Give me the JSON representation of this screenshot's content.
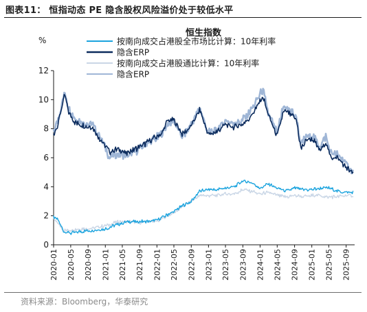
{
  "figure_title": "图表11：  恒指动态 PE 隐含股权风险溢价处于较低水平",
  "source_note": "资料来源：Bloomberg，华泰研究",
  "colors": {
    "series1": "#1aa3de",
    "series2": "#0a2a5c",
    "series3": "#c9d6e6",
    "series4": "#9fb6d6"
  },
  "chart_data": {
    "type": "line",
    "title": "恒生指数",
    "ylabel": "%",
    "xlabel": "",
    "ylim": [
      0,
      12
    ],
    "yticks": [
      "0",
      "2",
      "4",
      "6",
      "8",
      "10",
      "12"
    ],
    "grid": false,
    "legend_position": "top-center",
    "x_ticks": [
      "2020-01",
      "2020-05",
      "2020-09",
      "2021-01",
      "2021-05",
      "2021-09",
      "2022-01",
      "2022-05",
      "2022-09",
      "2023-01",
      "2023-05",
      "2023-09",
      "2024-01",
      "2024-05",
      "2024-09",
      "2025-01",
      "2025-05",
      "2025-09"
    ],
    "x_range": [
      "2020-01-01",
      "2025-10-31"
    ],
    "series": [
      {
        "name": "按南向成交占港股全市场比计算：10年利率",
        "color": "#1aa3de",
        "points": [
          [
            "2020-01-01",
            1.9
          ],
          [
            "2020-02-01",
            1.7
          ],
          [
            "2020-03-15",
            0.9
          ],
          [
            "2020-05-01",
            0.8
          ],
          [
            "2020-07-01",
            0.9
          ],
          [
            "2020-09-01",
            1.0
          ],
          [
            "2020-11-01",
            1.0
          ],
          [
            "2021-01-01",
            1.1
          ],
          [
            "2021-03-01",
            1.3
          ],
          [
            "2021-05-01",
            1.5
          ],
          [
            "2021-07-01",
            1.6
          ],
          [
            "2021-09-01",
            1.6
          ],
          [
            "2021-11-01",
            1.6
          ],
          [
            "2022-01-01",
            1.7
          ],
          [
            "2022-03-01",
            2.0
          ],
          [
            "2022-05-01",
            2.3
          ],
          [
            "2022-07-01",
            2.7
          ],
          [
            "2022-09-01",
            3.0
          ],
          [
            "2022-11-01",
            3.7
          ],
          [
            "2023-01-01",
            3.8
          ],
          [
            "2023-03-01",
            3.8
          ],
          [
            "2023-05-01",
            3.9
          ],
          [
            "2023-07-01",
            4.0
          ],
          [
            "2023-09-01",
            4.4
          ],
          [
            "2023-11-01",
            4.3
          ],
          [
            "2024-01-01",
            3.9
          ],
          [
            "2024-03-01",
            4.2
          ],
          [
            "2024-05-01",
            3.9
          ],
          [
            "2024-07-01",
            3.7
          ],
          [
            "2024-09-01",
            3.9
          ],
          [
            "2024-11-01",
            3.8
          ],
          [
            "2025-01-01",
            3.8
          ],
          [
            "2025-03-01",
            3.9
          ],
          [
            "2025-05-01",
            3.9
          ],
          [
            "2025-07-01",
            3.7
          ],
          [
            "2025-09-01",
            3.6
          ],
          [
            "2025-10-20",
            3.6
          ]
        ]
      },
      {
        "name": "隐含ERP",
        "color": "#0a2a5c",
        "points": [
          [
            "2020-01-01",
            7.6
          ],
          [
            "2020-02-01",
            8.3
          ],
          [
            "2020-03-20",
            10.4
          ],
          [
            "2020-04-15",
            9.2
          ],
          [
            "2020-06-01",
            8.4
          ],
          [
            "2020-08-01",
            8.2
          ],
          [
            "2020-10-01",
            8.1
          ],
          [
            "2020-12-01",
            7.2
          ],
          [
            "2021-02-01",
            6.4
          ],
          [
            "2021-04-01",
            6.6
          ],
          [
            "2021-06-01",
            6.3
          ],
          [
            "2021-08-01",
            6.6
          ],
          [
            "2021-10-01",
            6.9
          ],
          [
            "2021-12-01",
            7.3
          ],
          [
            "2022-02-01",
            7.6
          ],
          [
            "2022-03-15",
            8.5
          ],
          [
            "2022-05-01",
            8.6
          ],
          [
            "2022-07-01",
            7.6
          ],
          [
            "2022-09-01",
            8.2
          ],
          [
            "2022-10-31",
            9.3
          ],
          [
            "2023-01-01",
            7.6
          ],
          [
            "2023-03-01",
            7.8
          ],
          [
            "2023-05-01",
            8.3
          ],
          [
            "2023-07-01",
            8.1
          ],
          [
            "2023-09-01",
            8.3
          ],
          [
            "2023-11-01",
            8.9
          ],
          [
            "2024-01-22",
            10.2
          ],
          [
            "2024-03-01",
            8.9
          ],
          [
            "2024-05-01",
            7.5
          ],
          [
            "2024-06-15",
            9.2
          ],
          [
            "2024-08-01",
            9.0
          ],
          [
            "2024-09-15",
            8.6
          ],
          [
            "2024-10-15",
            6.6
          ],
          [
            "2024-12-01",
            7.3
          ],
          [
            "2025-01-15",
            7.2
          ],
          [
            "2025-03-01",
            6.4
          ],
          [
            "2025-04-10",
            7.1
          ],
          [
            "2025-05-15",
            6.0
          ],
          [
            "2025-07-01",
            6.0
          ],
          [
            "2025-08-15",
            5.5
          ],
          [
            "2025-10-20",
            4.9
          ]
        ]
      },
      {
        "name": "按南向成交占港股通比计算：10年利率",
        "color": "#c9d6e6",
        "points": [
          [
            "2020-01-01",
            1.8
          ],
          [
            "2020-02-01",
            1.5
          ],
          [
            "2020-03-15",
            1.0
          ],
          [
            "2020-05-01",
            1.0
          ],
          [
            "2020-07-01",
            1.1
          ],
          [
            "2020-09-01",
            1.1
          ],
          [
            "2020-11-01",
            1.2
          ],
          [
            "2021-01-01",
            1.3
          ],
          [
            "2021-03-01",
            1.5
          ],
          [
            "2021-05-01",
            1.6
          ],
          [
            "2021-07-01",
            1.6
          ],
          [
            "2021-09-01",
            1.5
          ],
          [
            "2021-11-01",
            1.6
          ],
          [
            "2022-01-01",
            1.6
          ],
          [
            "2022-03-01",
            1.9
          ],
          [
            "2022-05-01",
            2.2
          ],
          [
            "2022-07-01",
            2.6
          ],
          [
            "2022-09-01",
            3.0
          ],
          [
            "2022-11-01",
            3.4
          ],
          [
            "2023-01-01",
            3.4
          ],
          [
            "2023-03-01",
            3.4
          ],
          [
            "2023-05-01",
            3.5
          ],
          [
            "2023-07-01",
            3.5
          ],
          [
            "2023-09-01",
            3.8
          ],
          [
            "2023-11-01",
            3.7
          ],
          [
            "2024-01-01",
            3.5
          ],
          [
            "2024-03-01",
            3.6
          ],
          [
            "2024-05-01",
            3.4
          ],
          [
            "2024-07-01",
            3.3
          ],
          [
            "2024-09-01",
            3.4
          ],
          [
            "2024-11-01",
            3.3
          ],
          [
            "2025-01-01",
            3.4
          ],
          [
            "2025-03-01",
            3.4
          ],
          [
            "2025-05-01",
            3.3
          ],
          [
            "2025-07-01",
            3.3
          ],
          [
            "2025-09-01",
            3.4
          ],
          [
            "2025-10-20",
            3.4
          ]
        ]
      },
      {
        "name": "隐含ERP",
        "color": "#9fb6d6",
        "points": [
          [
            "2020-01-01",
            7.7
          ],
          [
            "2020-02-01",
            8.6
          ],
          [
            "2020-03-20",
            10.5
          ],
          [
            "2020-04-15",
            9.5
          ],
          [
            "2020-06-01",
            8.7
          ],
          [
            "2020-08-01",
            8.4
          ],
          [
            "2020-10-01",
            8.3
          ],
          [
            "2020-12-01",
            7.4
          ],
          [
            "2021-02-01",
            6.0
          ],
          [
            "2021-04-01",
            6.3
          ],
          [
            "2021-06-01",
            6.1
          ],
          [
            "2021-08-01",
            6.4
          ],
          [
            "2021-10-01",
            6.8
          ],
          [
            "2021-12-01",
            7.2
          ],
          [
            "2022-02-01",
            7.6
          ],
          [
            "2022-03-15",
            8.3
          ],
          [
            "2022-05-01",
            8.5
          ],
          [
            "2022-07-01",
            7.4
          ],
          [
            "2022-09-01",
            8.3
          ],
          [
            "2022-10-31",
            9.4
          ],
          [
            "2023-01-01",
            7.7
          ],
          [
            "2023-03-01",
            7.9
          ],
          [
            "2023-05-01",
            8.5
          ],
          [
            "2023-07-01",
            8.4
          ],
          [
            "2023-09-01",
            8.6
          ],
          [
            "2023-11-01",
            9.3
          ],
          [
            "2024-01-22",
            10.7
          ],
          [
            "2024-03-01",
            9.0
          ],
          [
            "2024-05-01",
            7.7
          ],
          [
            "2024-06-15",
            9.6
          ],
          [
            "2024-08-01",
            9.3
          ],
          [
            "2024-09-15",
            8.8
          ],
          [
            "2024-10-15",
            6.9
          ],
          [
            "2024-12-01",
            7.5
          ],
          [
            "2025-01-15",
            7.4
          ],
          [
            "2025-03-01",
            6.7
          ],
          [
            "2025-04-10",
            7.5
          ],
          [
            "2025-05-15",
            6.3
          ],
          [
            "2025-07-01",
            6.2
          ],
          [
            "2025-08-15",
            5.8
          ],
          [
            "2025-10-20",
            5.0
          ]
        ]
      }
    ]
  }
}
